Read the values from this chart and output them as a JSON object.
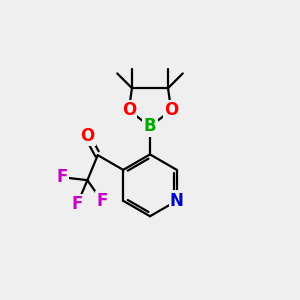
{
  "background_color": "#efefef",
  "atom_colors": {
    "C": "#000000",
    "B": "#00aa00",
    "O": "#ff0000",
    "N": "#0000cc",
    "F": "#cc00cc"
  },
  "bond_color": "#000000",
  "bond_width": 1.6,
  "font_size": 12,
  "figsize": [
    3.0,
    3.0
  ],
  "dpi": 100
}
